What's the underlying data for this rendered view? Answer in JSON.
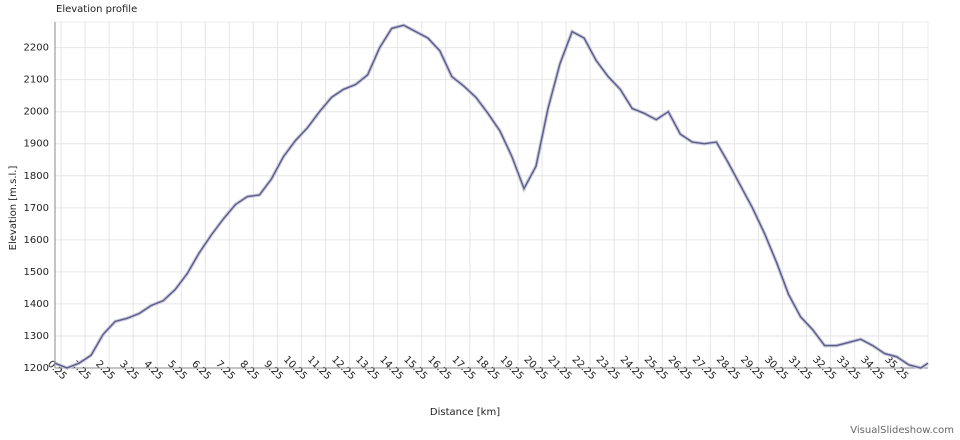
{
  "chart_data": {
    "type": "line",
    "title": "Elevation profile",
    "x_label": "Distance [km]",
    "y_label": "Elevation [m.s.l.]",
    "x": [
      0,
      0.5,
      1,
      1.5,
      2,
      2.5,
      3,
      3.5,
      4,
      4.5,
      5,
      5.5,
      6,
      6.5,
      7,
      7.5,
      8,
      8.5,
      9,
      9.5,
      10,
      10.5,
      11,
      11.5,
      12,
      12.5,
      13,
      13.5,
      14,
      14.5,
      15,
      15.5,
      16,
      16.5,
      17,
      17.5,
      18,
      18.5,
      19,
      19.5,
      20,
      20.5,
      21,
      21.5,
      22,
      22.5,
      23,
      23.5,
      24,
      24.5,
      25,
      25.5,
      26,
      26.5,
      27,
      27.5,
      28,
      28.5,
      29,
      29.5,
      30,
      30.5,
      31,
      31.5,
      32,
      32.5,
      33,
      33.5,
      34,
      34.5,
      35,
      35.5,
      36,
      36.3
    ],
    "series": [
      {
        "name": "Elevation",
        "color": "#5c5c8a",
        "values": [
          1215,
          1200,
          1215,
          1240,
          1305,
          1345,
          1355,
          1370,
          1395,
          1410,
          1445,
          1495,
          1560,
          1615,
          1665,
          1710,
          1735,
          1740,
          1790,
          1860,
          1910,
          1950,
          2000,
          2045,
          2070,
          2085,
          2115,
          2200,
          2260,
          2270,
          2250,
          2230,
          2190,
          2110,
          2080,
          2045,
          1995,
          1940,
          1860,
          1760,
          1830,
          2010,
          2150,
          2250,
          2230,
          2160,
          2110,
          2070,
          2010,
          1995,
          1975,
          2000,
          1930,
          1905,
          1900,
          1905,
          1840,
          1770,
          1700,
          1620,
          1530,
          1430,
          1360,
          1320,
          1270,
          1270,
          1280,
          1290,
          1270,
          1245,
          1235,
          1210,
          1200,
          1215
        ]
      }
    ],
    "xlim": [
      0,
      36.3
    ],
    "ylim": [
      1200,
      2280
    ],
    "xticks": [
      0.25,
      1.25,
      2.25,
      3.25,
      4.25,
      5.25,
      6.25,
      7.25,
      8.25,
      9.25,
      10.25,
      11.25,
      12.25,
      13.25,
      14.25,
      15.25,
      16.25,
      17.25,
      18.25,
      19.25,
      20.25,
      21.25,
      22.25,
      23.25,
      24.25,
      25.25,
      26.25,
      27.25,
      28.25,
      29.25,
      30.25,
      31.25,
      32.25,
      33.25,
      34.25,
      35.25
    ],
    "yticks": [
      1200,
      1300,
      1400,
      1500,
      1600,
      1700,
      1800,
      1900,
      2000,
      2100,
      2200
    ],
    "grid": true
  },
  "watermark": "VisualSlideshow.com"
}
